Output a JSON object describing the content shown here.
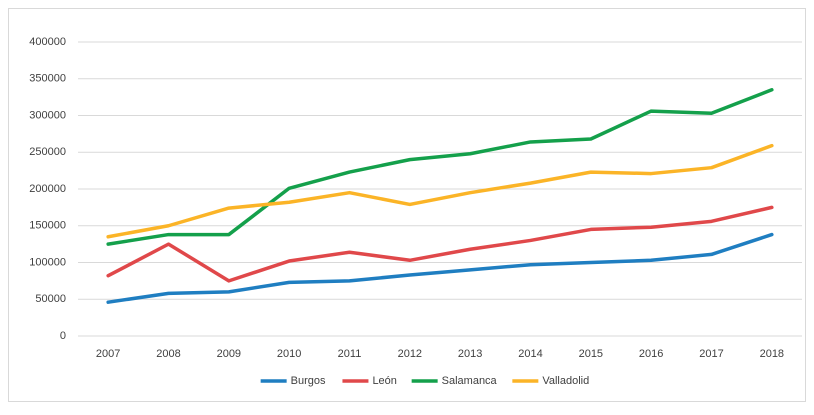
{
  "chart_data": {
    "type": "line",
    "categories": [
      "2007",
      "2008",
      "2009",
      "2010",
      "2011",
      "2012",
      "2013",
      "2014",
      "2015",
      "2016",
      "2017",
      "2018"
    ],
    "series": [
      {
        "name": "Burgos",
        "color": "#1f7ec1",
        "values": [
          46000,
          58000,
          60000,
          73000,
          75000,
          83000,
          90000,
          97000,
          100000,
          103000,
          111000,
          138000
        ]
      },
      {
        "name": "León",
        "color": "#e0484a",
        "values": [
          82000,
          125000,
          75000,
          102000,
          114000,
          103000,
          118000,
          130000,
          145000,
          148000,
          156000,
          175000
        ]
      },
      {
        "name": "Salamanca",
        "color": "#14a04b",
        "values": [
          125000,
          138000,
          138000,
          201000,
          223000,
          240000,
          248000,
          264000,
          268000,
          306000,
          303000,
          335000
        ]
      },
      {
        "name": "Valladolid",
        "color": "#fbb427",
        "values": [
          135000,
          150000,
          174000,
          182000,
          195000,
          179000,
          195000,
          208000,
          223000,
          221000,
          229000,
          259000
        ]
      }
    ],
    "ylim": [
      0,
      400000
    ],
    "yticks": [
      0,
      50000,
      100000,
      150000,
      200000,
      250000,
      300000,
      350000,
      400000
    ],
    "grid": true,
    "legend": "bottom"
  }
}
